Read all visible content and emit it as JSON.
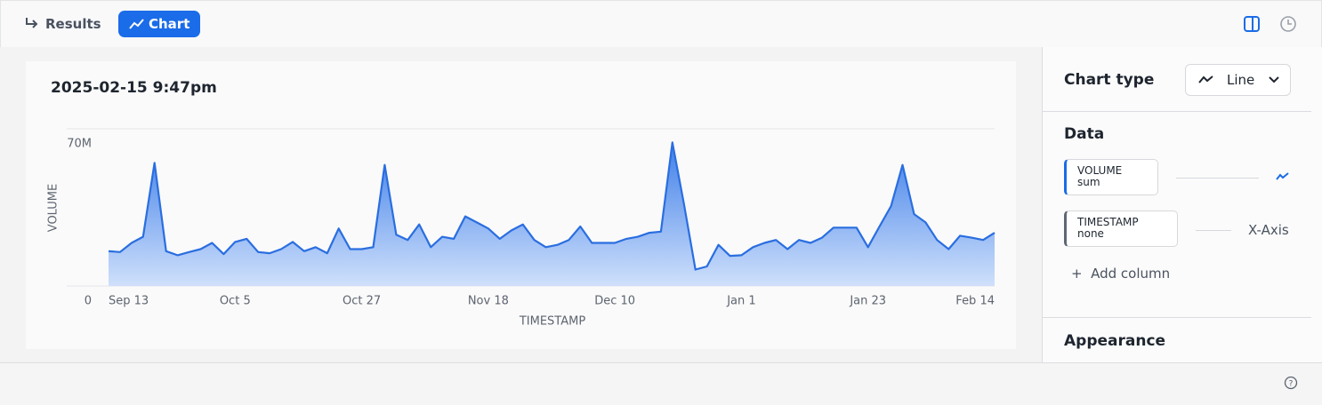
{
  "toolbar": {
    "tabs": [
      "Results",
      "Chart"
    ]
  },
  "chart_data": {
    "type": "area",
    "title": "2025-02-15 9:47pm",
    "x_label": "TIMESTAMP",
    "y_label": "VOLUME",
    "categories": [
      "Sep 13",
      null,
      null,
      null,
      null,
      null,
      null,
      null,
      null,
      null,
      null,
      "Oct 5",
      null,
      null,
      null,
      null,
      null,
      null,
      null,
      null,
      null,
      null,
      "Oct 27",
      null,
      null,
      null,
      null,
      null,
      null,
      null,
      null,
      null,
      null,
      "Nov 18",
      null,
      null,
      null,
      null,
      null,
      null,
      null,
      null,
      null,
      null,
      "Dec 10",
      null,
      null,
      null,
      null,
      null,
      null,
      null,
      null,
      null,
      null,
      "Jan 1",
      null,
      null,
      null,
      null,
      null,
      null,
      null,
      null,
      null,
      null,
      "Jan 23",
      null,
      null,
      null,
      null,
      null,
      null,
      null,
      null,
      null,
      null,
      "Feb 14"
    ],
    "values": [
      15500000,
      15100000,
      19200000,
      21900000,
      54800000,
      15500000,
      13700000,
      15100000,
      16400000,
      19200000,
      14200000,
      19600000,
      21000000,
      15100000,
      14600000,
      16400000,
      19600000,
      15500000,
      17300000,
      14600000,
      25600000,
      16400000,
      16400000,
      17300000,
      53900000,
      22800000,
      20500000,
      27400000,
      17300000,
      21900000,
      21000000,
      31000000,
      28300000,
      25600000,
      21000000,
      24700000,
      27400000,
      20500000,
      17300000,
      18300000,
      20500000,
      26500000,
      19200000,
      19200000,
      19200000,
      21000000,
      21900000,
      23700000,
      24200000,
      63900000,
      36500000,
      7300000,
      8700000,
      18300000,
      13400000,
      13700000,
      17300000,
      19200000,
      20500000,
      16400000,
      20500000,
      19200000,
      21500000,
      26000000,
      26000000,
      26000000,
      17300000,
      26500000,
      35600000,
      53900000,
      32000000,
      28300000,
      20500000,
      16400000,
      22400000,
      21500000,
      20500000,
      23700000
    ],
    "color": "#2a6ee0",
    "ylim": [
      0,
      70000000
    ],
    "yticks": [
      0,
      {
        "value": 70000000,
        "label": "70M"
      }
    ],
    "grid": true
  },
  "sidebar": {
    "chart_type_label": "Chart type",
    "chart_type": "Line",
    "data_heading": "Data",
    "columns": [
      {
        "name": "VOLUME",
        "agg": "sum"
      },
      {
        "name": "TIMESTAMP",
        "agg": "none",
        "role": "X-Axis"
      }
    ],
    "add_column": "Add column",
    "appearance": "Appearance"
  }
}
